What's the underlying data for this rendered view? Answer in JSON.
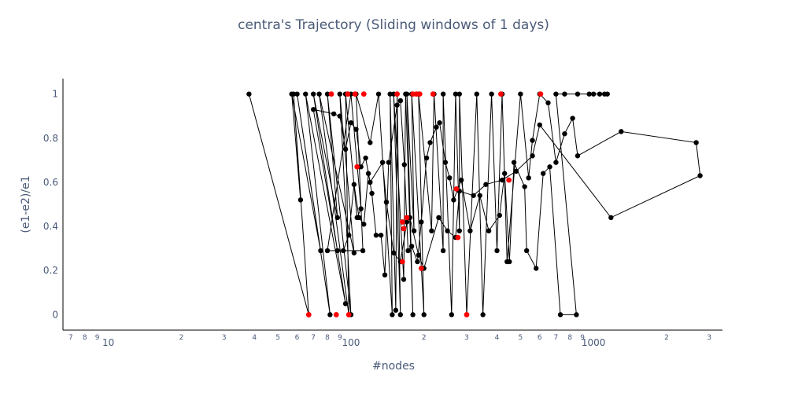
{
  "chart_data": {
    "type": "scatter",
    "title": "centra's Trajectory (Sliding windows of 1 days)",
    "xlabel": "#nodes",
    "ylabel": "(e1-e2)/e1",
    "x_scale": "log",
    "xlim": [
      6.5,
      3400
    ],
    "ylim": [
      -0.07,
      1.07
    ],
    "grid": false,
    "legend": "none",
    "x_major_ticks": [
      {
        "value": 10,
        "label": "10"
      },
      {
        "value": 100,
        "label": "100"
      },
      {
        "value": 1000,
        "label": "1000"
      }
    ],
    "x_minor_ticks": [
      {
        "value": 7,
        "label": "7"
      },
      {
        "value": 8,
        "label": "8"
      },
      {
        "value": 9,
        "label": "9"
      },
      {
        "value": 20,
        "label": "2"
      },
      {
        "value": 30,
        "label": "3"
      },
      {
        "value": 40,
        "label": "4"
      },
      {
        "value": 50,
        "label": "5"
      },
      {
        "value": 60,
        "label": "6"
      },
      {
        "value": 70,
        "label": "7"
      },
      {
        "value": 80,
        "label": "8"
      },
      {
        "value": 90,
        "label": "9"
      },
      {
        "value": 200,
        "label": "2"
      },
      {
        "value": 300,
        "label": "3"
      },
      {
        "value": 400,
        "label": "4"
      },
      {
        "value": 500,
        "label": "5"
      },
      {
        "value": 600,
        "label": "6"
      },
      {
        "value": 700,
        "label": "7"
      },
      {
        "value": 800,
        "label": "8"
      },
      {
        "value": 900,
        "label": "9"
      },
      {
        "value": 2000,
        "label": "2"
      },
      {
        "value": 3000,
        "label": "3"
      }
    ],
    "y_ticks": [
      {
        "value": 0,
        "label": "0"
      },
      {
        "value": 0.2,
        "label": "0.2"
      },
      {
        "value": 0.4,
        "label": "0.4"
      },
      {
        "value": 0.6,
        "label": "0.6"
      },
      {
        "value": 0.8,
        "label": "0.8"
      },
      {
        "value": 1,
        "label": "1"
      }
    ],
    "colors": {
      "line": "#000000",
      "point": "#000000",
      "highlight": "#ff0000",
      "axis": "#000000"
    },
    "series": [
      {
        "name": "trajectory",
        "points": [
          {
            "x": 38,
            "y": 1.0
          },
          {
            "x": 67,
            "y": 0.0
          },
          {
            "x": 58,
            "y": 1.0
          },
          {
            "x": 62,
            "y": 0.52
          },
          {
            "x": 57,
            "y": 1.0
          },
          {
            "x": 75,
            "y": 0.29
          },
          {
            "x": 60,
            "y": 1.0
          },
          {
            "x": 82,
            "y": 0.0
          },
          {
            "x": 65,
            "y": 1.0
          },
          {
            "x": 95,
            "y": 0.05
          },
          {
            "x": 70,
            "y": 1.0
          },
          {
            "x": 88,
            "y": 0.44
          },
          {
            "x": 80,
            "y": 1.0
          },
          {
            "x": 100,
            "y": 0.0
          },
          {
            "x": 90,
            "y": 1.0
          },
          {
            "x": 103,
            "y": 0.28
          },
          {
            "x": 74,
            "y": 1.0
          },
          {
            "x": 98,
            "y": 0.0
          },
          {
            "x": 95,
            "y": 1.0
          },
          {
            "x": 106,
            "y": 0.44
          },
          {
            "x": 110,
            "y": 0.48
          },
          {
            "x": 100,
            "y": 1.0
          },
          {
            "x": 80,
            "y": 0.29
          },
          {
            "x": 112,
            "y": 0.29
          },
          {
            "x": 105,
            "y": 1.0
          },
          {
            "x": 120,
            "y": 0.78
          },
          {
            "x": 130,
            "y": 1.0
          },
          {
            "x": 148,
            "y": 0.0
          },
          {
            "x": 145,
            "y": 1.0
          },
          {
            "x": 153,
            "y": 0.02
          },
          {
            "x": 155,
            "y": 1.0
          },
          {
            "x": 160,
            "y": 0.0
          },
          {
            "x": 150,
            "y": 1.0
          },
          {
            "x": 165,
            "y": 0.16
          },
          {
            "x": 168,
            "y": 1.0
          },
          {
            "x": 180,
            "y": 0.0
          },
          {
            "x": 170,
            "y": 1.0
          },
          {
            "x": 182,
            "y": 0.38
          },
          {
            "x": 178,
            "y": 1.0
          },
          {
            "x": 200,
            "y": 0.0
          },
          {
            "x": 190,
            "y": 1.0
          },
          {
            "x": 215,
            "y": 0.38
          },
          {
            "x": 220,
            "y": 1.0
          },
          {
            "x": 240,
            "y": 0.29
          },
          {
            "x": 240,
            "y": 1.0
          },
          {
            "x": 260,
            "y": 0.0
          },
          {
            "x": 270,
            "y": 1.0
          },
          {
            "x": 280,
            "y": 0.38
          },
          {
            "x": 280,
            "y": 1.0
          },
          {
            "x": 300,
            "y": 0.0
          },
          {
            "x": 330,
            "y": 1.0
          },
          {
            "x": 350,
            "y": 0.0
          },
          {
            "x": 380,
            "y": 1.0
          },
          {
            "x": 400,
            "y": 0.29
          },
          {
            "x": 420,
            "y": 1.0
          },
          {
            "x": 440,
            "y": 0.24
          },
          {
            "x": 500,
            "y": 1.0
          },
          {
            "x": 540,
            "y": 0.62
          },
          {
            "x": 560,
            "y": 0.79
          },
          {
            "x": 600,
            "y": 1.0
          },
          {
            "x": 650,
            "y": 0.96
          },
          {
            "x": 700,
            "y": 0.69
          },
          {
            "x": 760,
            "y": 0.82
          },
          {
            "x": 820,
            "y": 0.89
          },
          {
            "x": 860,
            "y": 0.72
          },
          {
            "x": 1300,
            "y": 0.83
          },
          {
            "x": 2650,
            "y": 0.78
          },
          {
            "x": 2750,
            "y": 0.63
          },
          {
            "x": 1180,
            "y": 0.44
          },
          {
            "x": 600,
            "y": 0.86
          },
          {
            "x": 560,
            "y": 0.72
          },
          {
            "x": 480,
            "y": 0.65
          },
          {
            "x": 420,
            "y": 0.61
          },
          {
            "x": 360,
            "y": 0.59
          },
          {
            "x": 320,
            "y": 0.54
          },
          {
            "x": 280,
            "y": 0.56
          },
          {
            "x": 270,
            "y": 0.35
          },
          {
            "x": 250,
            "y": 0.38
          },
          {
            "x": 230,
            "y": 0.44
          },
          {
            "x": 200,
            "y": 0.21
          },
          {
            "x": 190,
            "y": 0.27
          },
          {
            "x": 175,
            "y": 0.44
          },
          {
            "x": 170,
            "y": 0.42
          },
          {
            "x": 160,
            "y": 0.24
          },
          {
            "x": 150,
            "y": 0.28
          },
          {
            "x": 140,
            "y": 0.51
          },
          {
            "x": 135,
            "y": 0.69
          },
          {
            "x": 120,
            "y": 0.6
          },
          {
            "x": 115,
            "y": 0.71
          },
          {
            "x": 110,
            "y": 0.67
          },
          {
            "x": 105,
            "y": 0.84
          },
          {
            "x": 100,
            "y": 0.87
          },
          {
            "x": 95,
            "y": 0.75
          },
          {
            "x": 90,
            "y": 0.9
          },
          {
            "x": 85,
            "y": 0.91
          },
          {
            "x": 70,
            "y": 0.93
          },
          {
            "x": 88,
            "y": 0.29
          },
          {
            "x": 93,
            "y": 0.29
          },
          {
            "x": 98,
            "y": 0.36
          },
          {
            "x": 103,
            "y": 0.59
          },
          {
            "x": 108,
            "y": 0.44
          },
          {
            "x": 113,
            "y": 0.41
          },
          {
            "x": 118,
            "y": 0.64
          },
          {
            "x": 122,
            "y": 0.55
          },
          {
            "x": 127,
            "y": 0.36
          },
          {
            "x": 133,
            "y": 0.36
          },
          {
            "x": 138,
            "y": 0.18
          },
          {
            "x": 143,
            "y": 0.69
          },
          {
            "x": 155,
            "y": 0.95
          },
          {
            "x": 160,
            "y": 0.97
          },
          {
            "x": 166,
            "y": 0.68
          },
          {
            "x": 172,
            "y": 0.29
          },
          {
            "x": 178,
            "y": 0.31
          },
          {
            "x": 188,
            "y": 0.24
          },
          {
            "x": 195,
            "y": 0.42
          },
          {
            "x": 205,
            "y": 0.71
          },
          {
            "x": 212,
            "y": 0.78
          },
          {
            "x": 225,
            "y": 0.85
          },
          {
            "x": 232,
            "y": 0.87
          },
          {
            "x": 245,
            "y": 0.69
          },
          {
            "x": 255,
            "y": 0.62
          },
          {
            "x": 265,
            "y": 0.52
          },
          {
            "x": 285,
            "y": 0.61
          },
          {
            "x": 310,
            "y": 0.38
          },
          {
            "x": 340,
            "y": 0.54
          },
          {
            "x": 370,
            "y": 0.38
          },
          {
            "x": 410,
            "y": 0.45
          },
          {
            "x": 430,
            "y": 0.64
          },
          {
            "x": 450,
            "y": 0.24
          },
          {
            "x": 470,
            "y": 0.69
          },
          {
            "x": 520,
            "y": 0.58
          },
          {
            "x": 530,
            "y": 0.29
          },
          {
            "x": 580,
            "y": 0.21
          },
          {
            "x": 620,
            "y": 0.64
          },
          {
            "x": 660,
            "y": 0.67
          },
          {
            "x": 730,
            "y": 0.0
          },
          {
            "x": 850,
            "y": 0.0
          },
          {
            "x": 700,
            "y": 1.0
          },
          {
            "x": 760,
            "y": 1.0
          },
          {
            "x": 860,
            "y": 1.0
          },
          {
            "x": 960,
            "y": 1.0
          },
          {
            "x": 1000,
            "y": 1.0
          },
          {
            "x": 1060,
            "y": 1.0
          },
          {
            "x": 1110,
            "y": 1.0
          },
          {
            "x": 1140,
            "y": 1.0
          }
        ]
      }
    ],
    "highlight_points": [
      {
        "x": 67,
        "y": 0.0
      },
      {
        "x": 87,
        "y": 0.0
      },
      {
        "x": 98,
        "y": 0.0
      },
      {
        "x": 83,
        "y": 1.0
      },
      {
        "x": 97,
        "y": 1.0
      },
      {
        "x": 104,
        "y": 1.0
      },
      {
        "x": 113,
        "y": 1.0
      },
      {
        "x": 155,
        "y": 1.0
      },
      {
        "x": 180,
        "y": 1.0
      },
      {
        "x": 186,
        "y": 1.0
      },
      {
        "x": 192,
        "y": 1.0
      },
      {
        "x": 218,
        "y": 1.0
      },
      {
        "x": 415,
        "y": 1.0
      },
      {
        "x": 605,
        "y": 1.0
      },
      {
        "x": 106,
        "y": 0.67
      },
      {
        "x": 170,
        "y": 0.44
      },
      {
        "x": 163,
        "y": 0.42
      },
      {
        "x": 165,
        "y": 0.39
      },
      {
        "x": 163,
        "y": 0.24
      },
      {
        "x": 195,
        "y": 0.21
      },
      {
        "x": 272,
        "y": 0.57
      },
      {
        "x": 276,
        "y": 0.35
      },
      {
        "x": 300,
        "y": 0.0
      },
      {
        "x": 448,
        "y": 0.61
      }
    ]
  }
}
